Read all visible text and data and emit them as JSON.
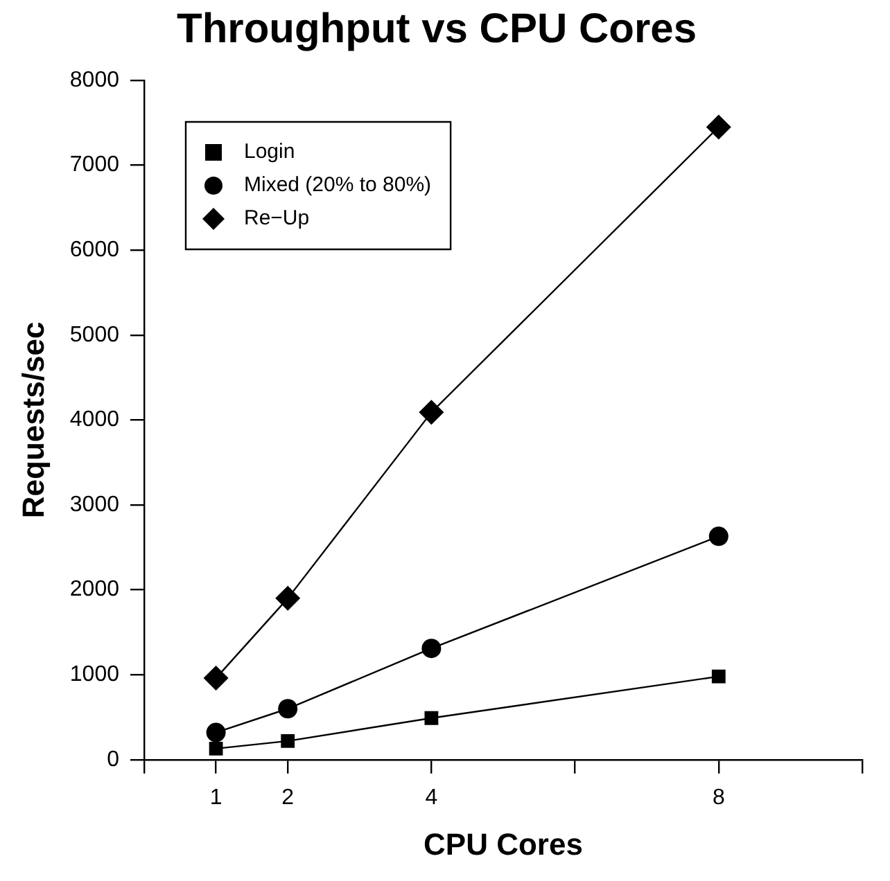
{
  "chart_data": {
    "type": "line",
    "title": "Throughput vs CPU Cores",
    "xlabel": "CPU Cores",
    "ylabel": "Requests/sec",
    "x": [
      1,
      2,
      4,
      8
    ],
    "series": [
      {
        "name": "Login",
        "color": "#000000",
        "marker": "square",
        "values": [
          130,
          220,
          490,
          980
        ]
      },
      {
        "name": "Mixed (20% to 80%)",
        "color": "#000000",
        "marker": "circle",
        "values": [
          320,
          600,
          1310,
          2630
        ]
      },
      {
        "name": "Re−Up",
        "color": "#000000",
        "marker": "diamond",
        "values": [
          960,
          1900,
          4090,
          7450
        ]
      }
    ],
    "xlim": [
      0,
      10
    ],
    "xticks": [
      {
        "value": 0,
        "label": null
      },
      1,
      2,
      4,
      {
        "value": 6,
        "label": null
      },
      8,
      {
        "value": 10,
        "label": null
      }
    ],
    "ylim": [
      0,
      8000
    ],
    "yticks": [
      0,
      1000,
      2000,
      3000,
      4000,
      5000,
      6000,
      7000,
      8000
    ],
    "grid": false,
    "legend": "top left",
    "line_style": "solid"
  }
}
